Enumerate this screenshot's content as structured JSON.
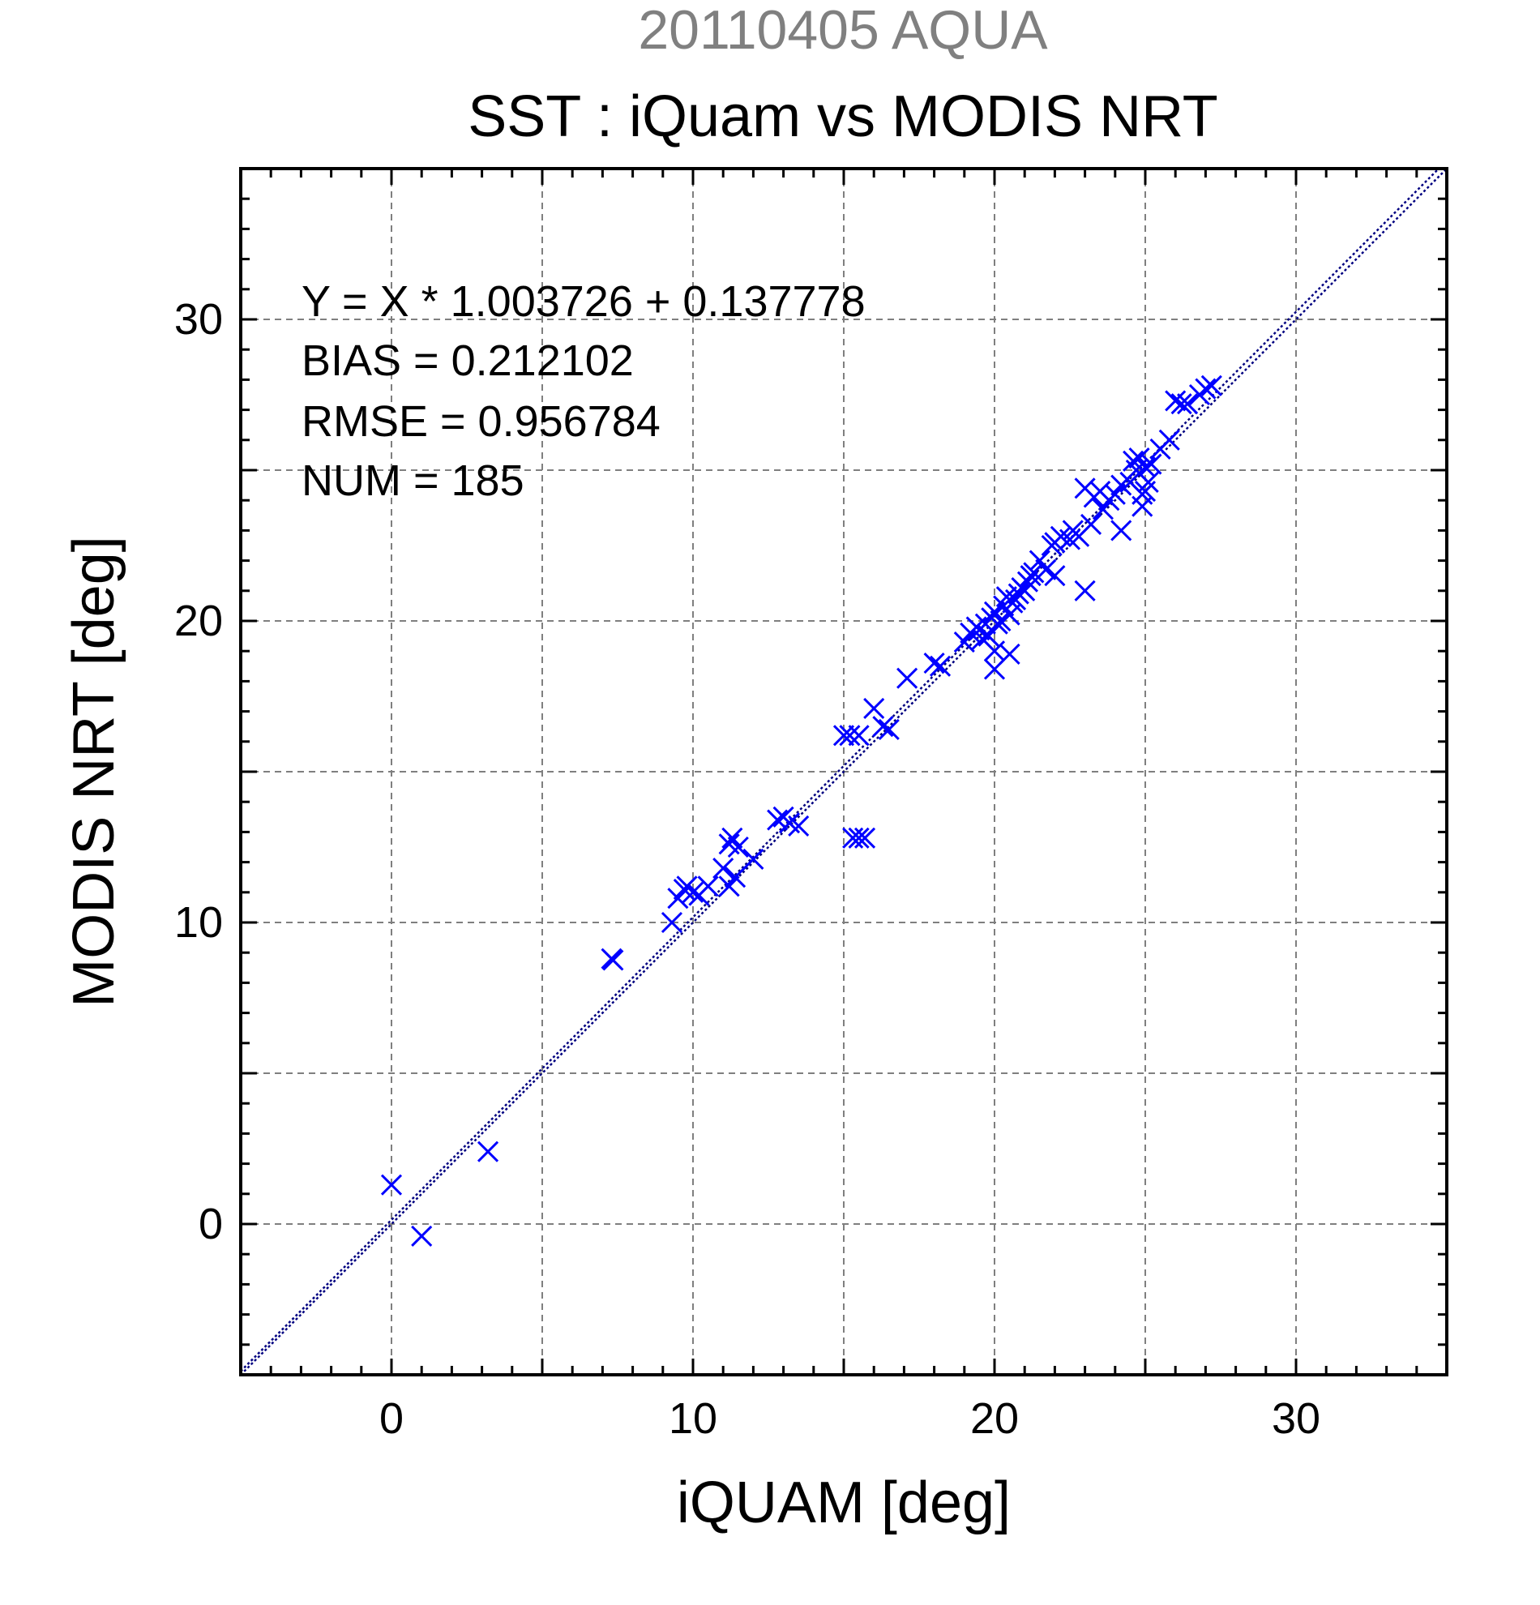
{
  "colors": {
    "series": "#0000ff",
    "fit_line": "#000080",
    "grid": "#7f7f7f",
    "suptitle": "#808080",
    "axis": "#000000"
  },
  "chart_data": {
    "type": "scatter",
    "suptitle": "20110405 AQUA",
    "title": "SST : iQuam vs MODIS NRT",
    "xlabel": "iQUAM [deg]",
    "ylabel": "MODIS NRT [deg]",
    "xlim": [
      -5,
      35
    ],
    "ylim": [
      -5,
      35
    ],
    "xticks": [
      0,
      10,
      20,
      30
    ],
    "yticks": [
      0,
      10,
      20,
      30
    ],
    "grid": true,
    "marker": "x",
    "stats": [
      "Y = X * 1.003726 + 0.137778",
      "BIAS = 0.212102",
      "RMSE = 0.956784",
      "NUM = 185"
    ],
    "lines": [
      {
        "name": "1:1",
        "slope": 1.0,
        "intercept": 0.0
      },
      {
        "name": "fit",
        "slope": 1.003726,
        "intercept": 0.137778
      }
    ],
    "series": [
      {
        "x": [
          0.0,
          1.0,
          3.2,
          7.3,
          7.35,
          9.3,
          9.5,
          9.7,
          9.8,
          10.0,
          10.2,
          10.5,
          11.0,
          11.2,
          11.3,
          11.5,
          11.2,
          11.4,
          12.0,
          12.8,
          13.0,
          13.2,
          13.5,
          15.0,
          15.2,
          15.5,
          16.0,
          16.3,
          16.5,
          15.3,
          15.5,
          15.7,
          17.1,
          18.0,
          18.2,
          19.0,
          19.2,
          19.4,
          19.5,
          19.6,
          19.7,
          19.8,
          19.9,
          20.0,
          20.0,
          20.1,
          20.2,
          20.3,
          20.4,
          20.5,
          20.6,
          20.7,
          20.8,
          20.9,
          21.0,
          21.1,
          21.2,
          21.3,
          21.5,
          21.7,
          21.9,
          22.0,
          22.2,
          22.5,
          22.6,
          22.8,
          23.0,
          23.2,
          23.3,
          23.5,
          23.6,
          23.8,
          24.0,
          24.2,
          24.5,
          24.6,
          24.7,
          24.8,
          24.9,
          25.0,
          25.1,
          25.2,
          25.5,
          25.8,
          26.0,
          26.2,
          26.4,
          26.8,
          27.0,
          27.2,
          20.0,
          20.5,
          19.8,
          24.2,
          24.9,
          25.0,
          23.0,
          22.0
        ],
        "y": [
          1.3,
          -0.4,
          2.4,
          8.8,
          8.75,
          10.0,
          10.8,
          11.1,
          11.2,
          11.0,
          10.9,
          11.2,
          11.8,
          12.6,
          12.8,
          12.5,
          11.2,
          11.5,
          12.1,
          13.4,
          13.5,
          13.3,
          13.2,
          16.2,
          16.2,
          16.2,
          17.1,
          16.5,
          16.4,
          12.8,
          12.8,
          12.8,
          18.1,
          18.6,
          18.5,
          19.3,
          19.6,
          19.8,
          19.7,
          19.4,
          19.9,
          19.5,
          20.1,
          20.3,
          18.4,
          19.9,
          20.0,
          20.5,
          20.8,
          20.2,
          20.6,
          20.7,
          20.9,
          21.1,
          21.0,
          21.3,
          21.5,
          21.6,
          22.0,
          21.7,
          22.5,
          22.6,
          22.8,
          22.7,
          23.0,
          22.8,
          24.4,
          23.2,
          24.1,
          24.3,
          23.7,
          24.0,
          24.2,
          23.0,
          24.6,
          25.3,
          25.0,
          25.4,
          24.2,
          25.1,
          24.6,
          25.2,
          25.7,
          26.0,
          27.3,
          27.2,
          27.2,
          27.5,
          27.7,
          27.8,
          19.0,
          18.9,
          19.5,
          24.5,
          23.8,
          24.3,
          21.0,
          21.5
        ]
      }
    ]
  }
}
